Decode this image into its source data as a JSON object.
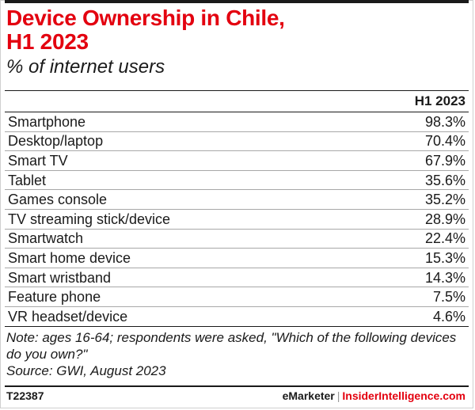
{
  "header": {
    "title_line1": "Device Ownership in Chile,",
    "title_line2": "H1 2023",
    "subtitle": "% of internet users"
  },
  "chart_data": {
    "type": "table",
    "title": "Device Ownership in Chile, H1 2023",
    "subtitle": "% of internet users",
    "columns": [
      "",
      "H1 2023"
    ],
    "rows": [
      {
        "label": "Smartphone",
        "value": 98.3,
        "display": "98.3%"
      },
      {
        "label": "Desktop/laptop",
        "value": 70.4,
        "display": "70.4%"
      },
      {
        "label": "Smart TV",
        "value": 67.9,
        "display": "67.9%"
      },
      {
        "label": "Tablet",
        "value": 35.6,
        "display": "35.6%"
      },
      {
        "label": "Games console",
        "value": 35.2,
        "display": "35.2%"
      },
      {
        "label": "TV streaming stick/device",
        "value": 28.9,
        "display": "28.9%"
      },
      {
        "label": "Smartwatch",
        "value": 22.4,
        "display": "22.4%"
      },
      {
        "label": "Smart home device",
        "value": 15.3,
        "display": "15.3%"
      },
      {
        "label": "Smart wristband",
        "value": 14.3,
        "display": "14.3%"
      },
      {
        "label": "Feature phone",
        "value": 7.5,
        "display": "7.5%"
      },
      {
        "label": "VR headset/device",
        "value": 4.6,
        "display": "4.6%"
      }
    ]
  },
  "footer": {
    "note": "Note: ages 16-64; respondents were asked, \"Which of the following devices do you own?\"",
    "source": "Source: GWI, August 2023",
    "chart_id": "T22387",
    "brand_emarketer": "eMarketer",
    "brand_separator": "|",
    "brand_insider": "InsiderIntelligence.com"
  },
  "colors": {
    "title": "#e3000f",
    "text": "#1a1a1a",
    "rule": "#1a1a1a"
  }
}
